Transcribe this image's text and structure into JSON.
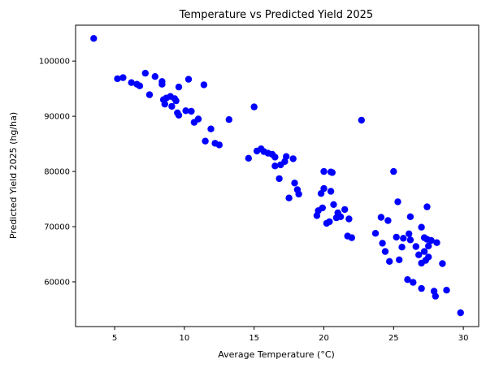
{
  "chart_data": {
    "type": "scatter",
    "title": "Temperature vs Predicted Yield 2025",
    "xlabel": "Average Temperature (°C)",
    "ylabel": "Predicted Yield 2025 (hg/ha)",
    "xlim": [
      2.2,
      31.1
    ],
    "ylim": [
      51900,
      106500
    ],
    "xticks": [
      5,
      10,
      15,
      20,
      25,
      30
    ],
    "xtick_labels": [
      "5",
      "10",
      "15",
      "20",
      "25",
      "30"
    ],
    "yticks": [
      60000,
      70000,
      80000,
      90000,
      100000
    ],
    "ytick_labels": [
      "60000",
      "70000",
      "80000",
      "90000",
      "100000"
    ],
    "grid": false,
    "legend": "none",
    "marker_color": "#0000ff",
    "points": [
      [
        3.5,
        104100
      ],
      [
        5.2,
        96800
      ],
      [
        5.6,
        97000
      ],
      [
        6.2,
        96100
      ],
      [
        6.6,
        95800
      ],
      [
        6.8,
        95500
      ],
      [
        7.2,
        97800
      ],
      [
        7.5,
        93900
      ],
      [
        7.9,
        97200
      ],
      [
        8.4,
        96300
      ],
      [
        8.4,
        95800
      ],
      [
        8.5,
        93000
      ],
      [
        8.6,
        92200
      ],
      [
        8.7,
        93300
      ],
      [
        9.0,
        93600
      ],
      [
        9.1,
        91800
      ],
      [
        9.3,
        93200
      ],
      [
        9.4,
        92800
      ],
      [
        9.5,
        90600
      ],
      [
        9.6,
        95300
      ],
      [
        9.6,
        90200
      ],
      [
        10.1,
        91000
      ],
      [
        10.3,
        96700
      ],
      [
        10.5,
        90900
      ],
      [
        10.7,
        88900
      ],
      [
        11.0,
        89500
      ],
      [
        11.4,
        95700
      ],
      [
        11.5,
        85500
      ],
      [
        11.9,
        87700
      ],
      [
        12.2,
        85100
      ],
      [
        12.5,
        84800
      ],
      [
        13.2,
        89400
      ],
      [
        14.6,
        82400
      ],
      [
        15.0,
        91700
      ],
      [
        15.2,
        83700
      ],
      [
        15.5,
        84100
      ],
      [
        15.7,
        83600
      ],
      [
        16.0,
        83300
      ],
      [
        16.3,
        83100
      ],
      [
        16.5,
        82600
      ],
      [
        16.5,
        81000
      ],
      [
        16.8,
        78700
      ],
      [
        16.9,
        81200
      ],
      [
        17.2,
        81800
      ],
      [
        17.3,
        82700
      ],
      [
        17.5,
        75200
      ],
      [
        17.8,
        82300
      ],
      [
        17.9,
        77900
      ],
      [
        18.1,
        76700
      ],
      [
        18.2,
        75900
      ],
      [
        19.5,
        72000
      ],
      [
        19.6,
        72900
      ],
      [
        19.8,
        76000
      ],
      [
        19.9,
        73400
      ],
      [
        20.0,
        80000
      ],
      [
        20.0,
        76900
      ],
      [
        20.2,
        70600
      ],
      [
        20.4,
        70900
      ],
      [
        20.5,
        76400
      ],
      [
        20.5,
        79900
      ],
      [
        20.6,
        79800
      ],
      [
        20.7,
        74000
      ],
      [
        20.9,
        71600
      ],
      [
        21.0,
        72500
      ],
      [
        21.2,
        71800
      ],
      [
        21.5,
        73100
      ],
      [
        21.7,
        68300
      ],
      [
        21.8,
        71400
      ],
      [
        22.0,
        68000
      ],
      [
        22.7,
        89300
      ],
      [
        23.7,
        68800
      ],
      [
        24.1,
        71700
      ],
      [
        24.2,
        67000
      ],
      [
        24.4,
        65500
      ],
      [
        24.6,
        71100
      ],
      [
        24.7,
        63700
      ],
      [
        25.0,
        80000
      ],
      [
        25.2,
        68100
      ],
      [
        25.3,
        74500
      ],
      [
        25.4,
        64000
      ],
      [
        25.6,
        66300
      ],
      [
        25.7,
        67900
      ],
      [
        26.0,
        60400
      ],
      [
        26.1,
        68700
      ],
      [
        26.2,
        67600
      ],
      [
        26.2,
        71800
      ],
      [
        26.4,
        59900
      ],
      [
        26.6,
        66400
      ],
      [
        26.8,
        64900
      ],
      [
        27.0,
        58800
      ],
      [
        27.0,
        69900
      ],
      [
        27.0,
        63400
      ],
      [
        27.2,
        65500
      ],
      [
        27.2,
        68000
      ],
      [
        27.3,
        63900
      ],
      [
        27.4,
        73600
      ],
      [
        27.4,
        67700
      ],
      [
        27.5,
        64500
      ],
      [
        27.5,
        66500
      ],
      [
        27.7,
        67500
      ],
      [
        27.9,
        58300
      ],
      [
        28.0,
        57400
      ],
      [
        28.1,
        67100
      ],
      [
        28.5,
        63300
      ],
      [
        28.8,
        58500
      ],
      [
        29.8,
        54400
      ]
    ]
  }
}
